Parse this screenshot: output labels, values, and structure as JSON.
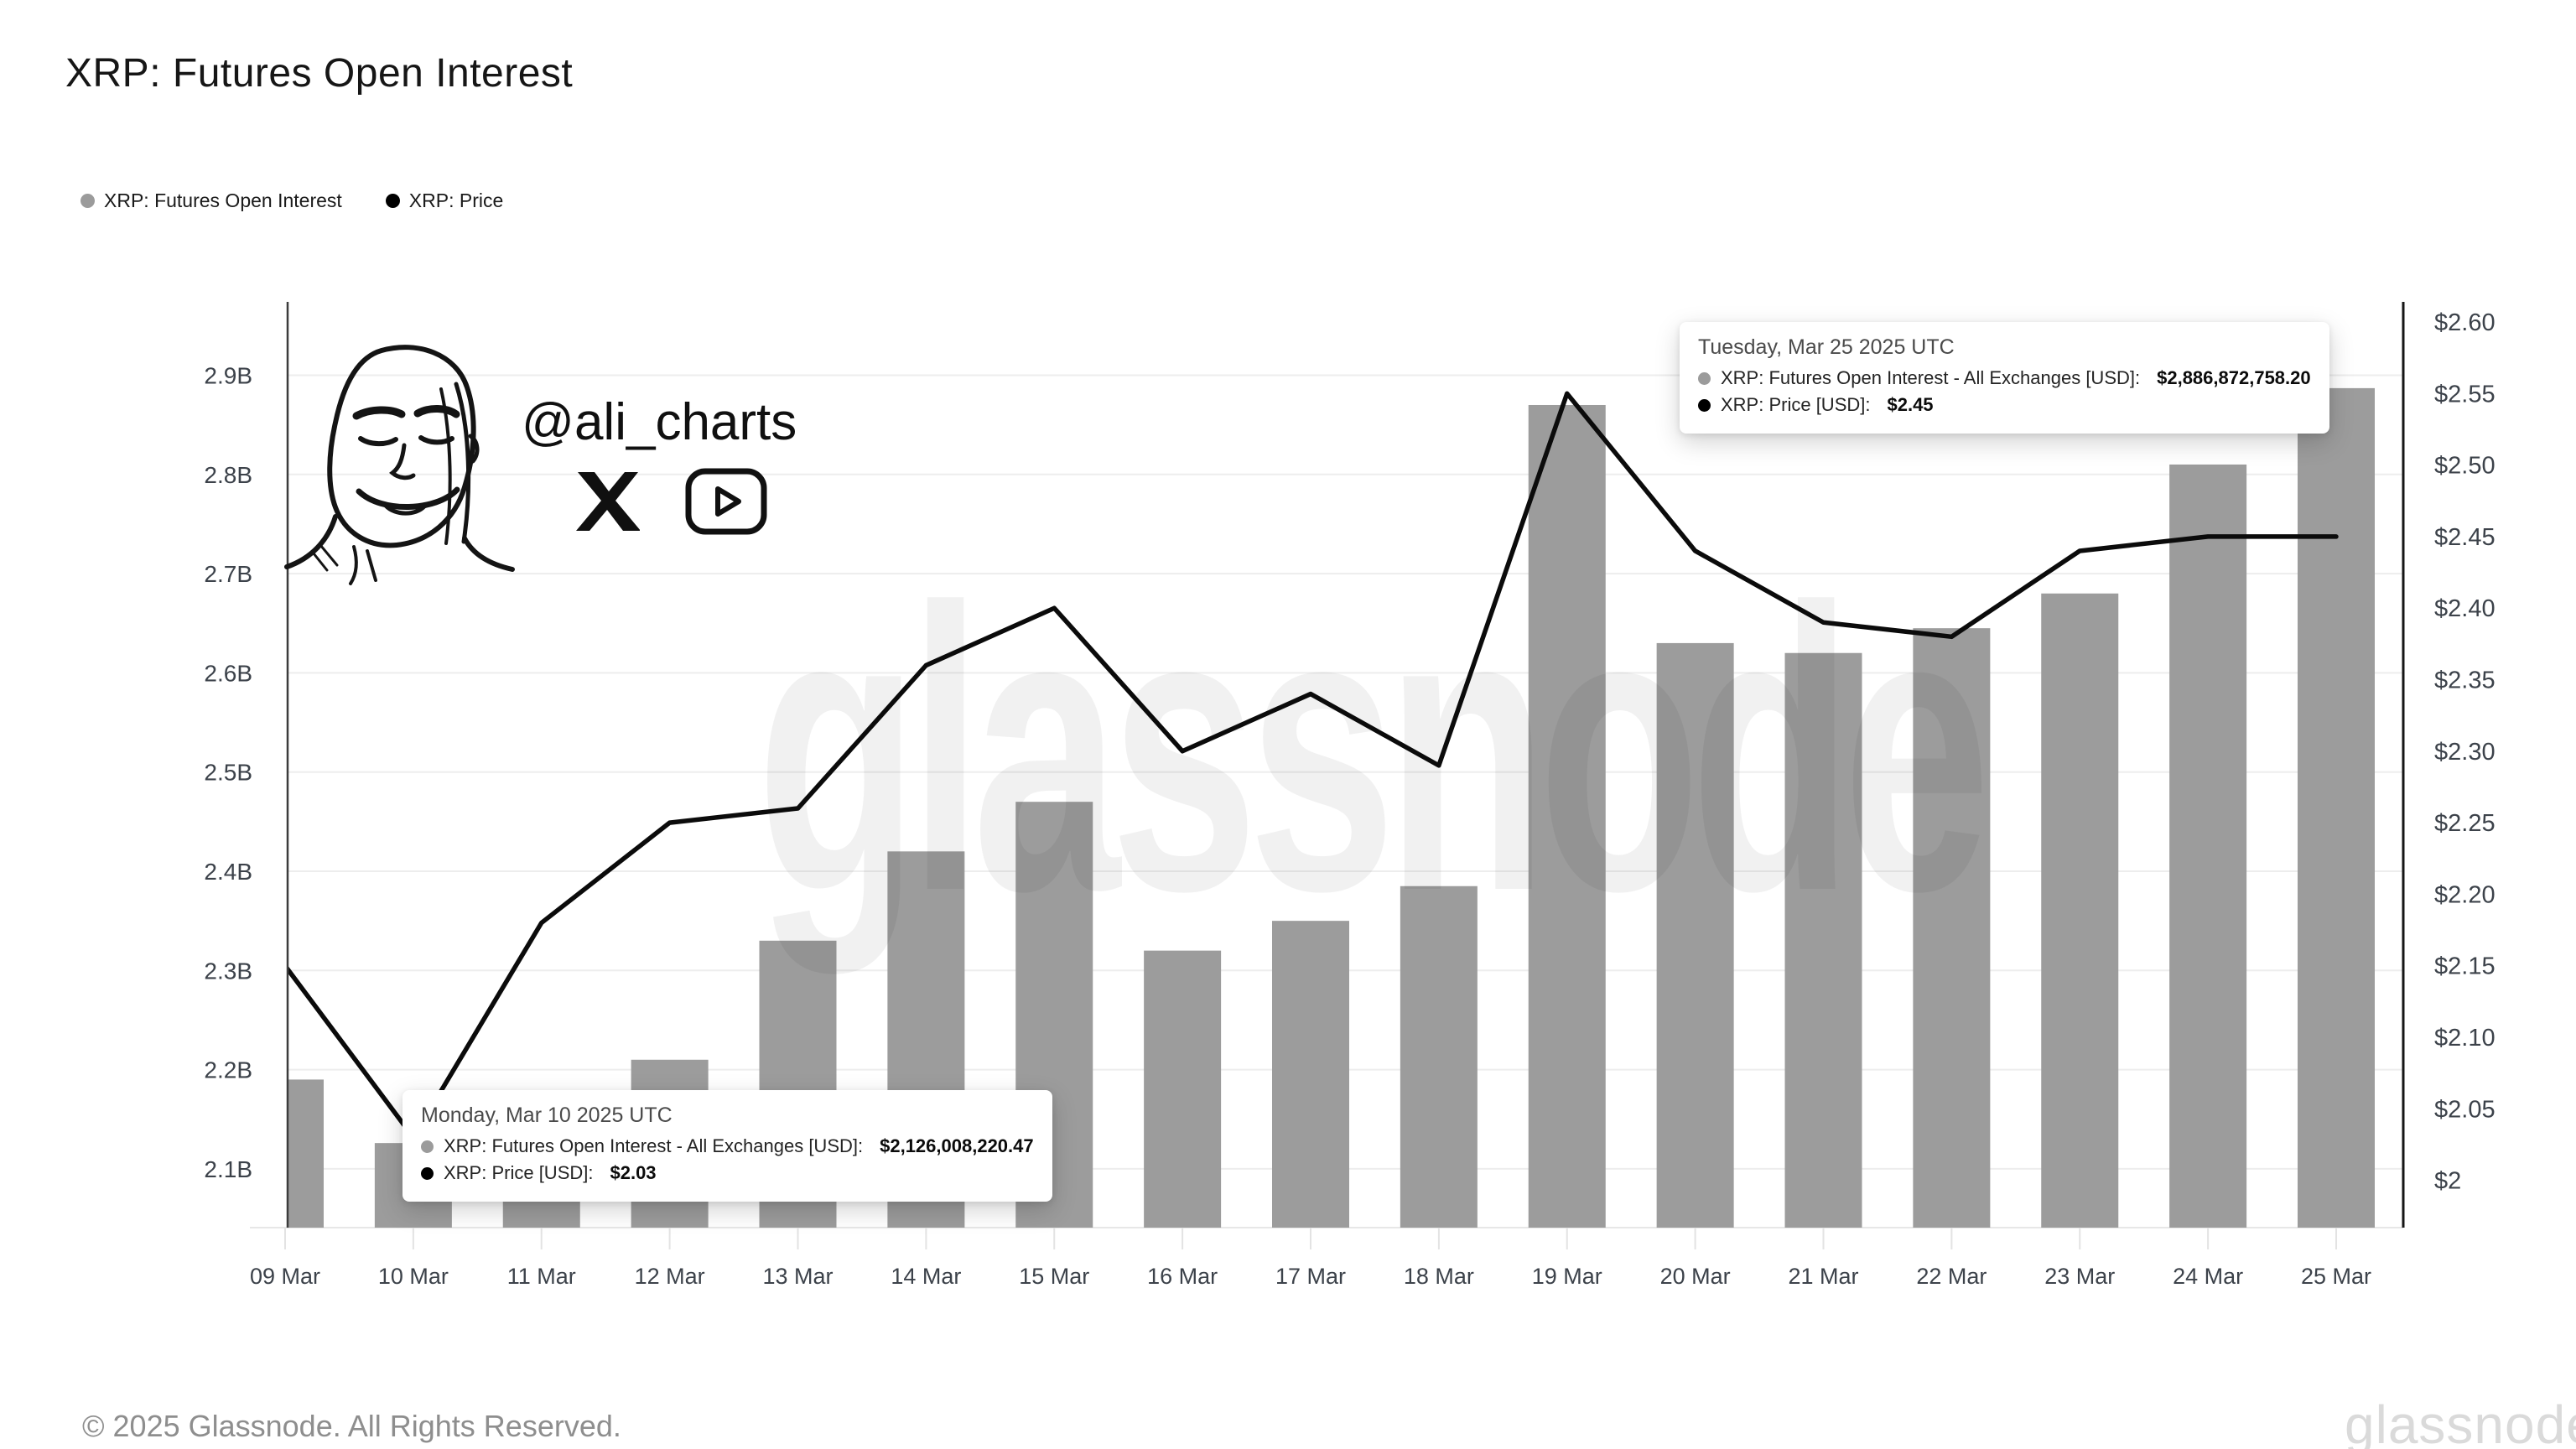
{
  "header": {
    "title": "XRP: Futures Open Interest"
  },
  "legend": {
    "items": [
      {
        "label": "XRP: Futures Open Interest",
        "color": "#9b9b9b"
      },
      {
        "label": "XRP: Price",
        "color": "#000000"
      }
    ]
  },
  "chart_data": {
    "type": "bar",
    "title": "XRP: Futures Open Interest",
    "categories": [
      "09 Mar",
      "10 Mar",
      "11 Mar",
      "12 Mar",
      "13 Mar",
      "14 Mar",
      "15 Mar",
      "16 Mar",
      "17 Mar",
      "18 Mar",
      "19 Mar",
      "20 Mar",
      "21 Mar",
      "22 Mar",
      "23 Mar",
      "24 Mar",
      "25 Mar"
    ],
    "series": [
      {
        "name": "XRP: Futures Open Interest - All Exchanges [USD]",
        "type": "bar",
        "axis": "left",
        "unit": "billion USD",
        "color": "#9c9c9c",
        "values": [
          2.19,
          2.126,
          2.08,
          2.21,
          2.33,
          2.42,
          2.47,
          2.32,
          2.35,
          2.385,
          2.87,
          2.63,
          2.62,
          2.645,
          2.68,
          2.81,
          2.887
        ]
      },
      {
        "name": "XRP: Price [USD]",
        "type": "line",
        "axis": "right",
        "unit": "USD",
        "color": "#0b0b0b",
        "values": [
          2.15,
          2.03,
          2.18,
          2.25,
          2.26,
          2.36,
          2.4,
          2.3,
          2.34,
          2.29,
          2.55,
          2.44,
          2.39,
          2.38,
          2.44,
          2.45,
          2.45
        ]
      }
    ],
    "left_axis": {
      "range": [
        2.04,
        2.97
      ],
      "ticks": [
        {
          "label": "2.1B",
          "value": 2.1
        },
        {
          "label": "2.2B",
          "value": 2.2
        },
        {
          "label": "2.3B",
          "value": 2.3
        },
        {
          "label": "2.4B",
          "value": 2.4
        },
        {
          "label": "2.5B",
          "value": 2.5
        },
        {
          "label": "2.6B",
          "value": 2.6
        },
        {
          "label": "2.7B",
          "value": 2.7
        },
        {
          "label": "2.8B",
          "value": 2.8
        },
        {
          "label": "2.9B",
          "value": 2.9
        }
      ]
    },
    "right_axis": {
      "range": [
        1.97,
        2.61
      ],
      "ticks": [
        {
          "label": "$2",
          "value": 2.0
        },
        {
          "label": "$2.05",
          "value": 2.05
        },
        {
          "label": "$2.10",
          "value": 2.1
        },
        {
          "label": "$2.15",
          "value": 2.15
        },
        {
          "label": "$2.20",
          "value": 2.2
        },
        {
          "label": "$2.25",
          "value": 2.25
        },
        {
          "label": "$2.30",
          "value": 2.3
        },
        {
          "label": "$2.35",
          "value": 2.35
        },
        {
          "label": "$2.40",
          "value": 2.4
        },
        {
          "label": "$2.45",
          "value": 2.45
        },
        {
          "label": "$2.50",
          "value": 2.5
        },
        {
          "label": "$2.55",
          "value": 2.55
        },
        {
          "label": "$2.60",
          "value": 2.6
        }
      ]
    },
    "grid": "horizontal",
    "legend_position": "top-left"
  },
  "tooltips": [
    {
      "date": "Tuesday, Mar 25 2025 UTC",
      "rows": [
        {
          "label": "XRP: Futures Open Interest - All Exchanges [USD]:",
          "value": "$2,886,872,758.20",
          "color": "#9b9b9b"
        },
        {
          "label": "XRP: Price [USD]:",
          "value": "$2.45",
          "color": "#000000"
        }
      ]
    },
    {
      "date": "Monday, Mar 10 2025 UTC",
      "rows": [
        {
          "label": "XRP: Futures Open Interest - All Exchanges [USD]:",
          "value": "$2,126,008,220.47",
          "color": "#9b9b9b"
        },
        {
          "label": "XRP: Price [USD]:",
          "value": "$2.03",
          "color": "#000000"
        }
      ]
    }
  ],
  "attribution": {
    "handle": "@ali_charts"
  },
  "watermark": {
    "text": "glassnode"
  },
  "footer": {
    "copyright": "© 2025 Glassnode. All Rights Reserved.",
    "logo_text": "glassnode"
  }
}
